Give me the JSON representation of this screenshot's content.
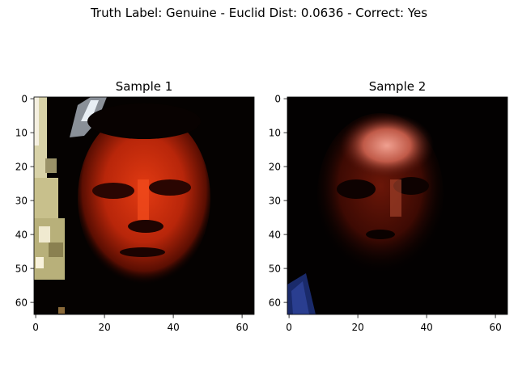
{
  "figure": {
    "suptitle": "Truth Label: Genuine - Euclid Dist: 0.0636 - Correct: Yes"
  },
  "panels": [
    {
      "title": "Sample 1",
      "image_size": [
        64,
        64
      ],
      "xticks": [
        "0",
        "20",
        "40",
        "60"
      ],
      "yticks": [
        "0",
        "10",
        "20",
        "30",
        "40",
        "50",
        "60"
      ]
    },
    {
      "title": "Sample 2",
      "image_size": [
        64,
        64
      ],
      "xticks": [
        "0",
        "20",
        "40",
        "60"
      ],
      "yticks": [
        "0",
        "10",
        "20",
        "30",
        "40",
        "50",
        "60"
      ]
    }
  ]
}
